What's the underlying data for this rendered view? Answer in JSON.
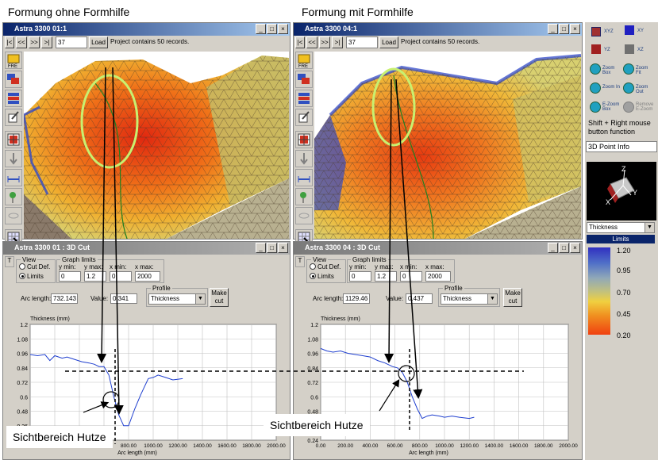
{
  "captions": {
    "left": "Formung ohne Formhilfe",
    "right": "Formung mit Formhilfe"
  },
  "window_buttons": [
    "_",
    "□",
    "×"
  ],
  "left_3d": {
    "title": "Astra 3300 01:1",
    "nav": [
      "|<",
      "<<",
      ">>",
      ">|"
    ],
    "record": "37",
    "load": "Load",
    "status": "Project contains 50 records."
  },
  "right_3d": {
    "title": "Astra 3300 04:1",
    "nav": [
      "|<",
      "<<",
      ">>",
      ">|"
    ],
    "record": "37",
    "load": "Load",
    "status": "Project contains 50 records."
  },
  "left_cut": {
    "title": "Astra 3300 01 : 3D Cut",
    "view_label": "View",
    "radio_cut_def": "Cut Def.",
    "radio_limits": "Limits",
    "graph_limits_label": "Graph limits",
    "ymin_label": "y min:",
    "ymax_label": "y max:",
    "xmin_label": "x min:",
    "xmax_label": "x max:",
    "ymin": "0",
    "ymax": "1.2",
    "xmin": "0",
    "xmax": "2000",
    "profile_label": "Profile",
    "profile_value": "Thickness",
    "make_cut": "Make cut",
    "arc_label": "Arc length:",
    "arc_value": "732.143",
    "value_label": "Value:",
    "value_value": "0.341"
  },
  "right_cut": {
    "title": "Astra 3300 04 : 3D Cut",
    "view_label": "View",
    "radio_cut_def": "Cut Def.",
    "radio_limits": "Limits",
    "graph_limits_label": "Graph limits",
    "ymin_label": "y min:",
    "ymax_label": "y max:",
    "xmin_label": "x min:",
    "xmax_label": "x max:",
    "ymin": "0",
    "ymax": "1.2",
    "xmin": "0",
    "xmax": "2000",
    "profile_label": "Profile",
    "profile_value": "Thickness",
    "make_cut": "Make cut",
    "arc_label": "Arc length:",
    "arc_value": "1129.46",
    "value_label": "Value:",
    "value_value": "0.437"
  },
  "right_panel": {
    "view_buttons": [
      "XYZ",
      "XY",
      "YZ",
      "XZ"
    ],
    "zoom_buttons": [
      "Zoom Box",
      "Zoom Fit",
      "Zoom In",
      "Zoom Out",
      "E-Zoom Box",
      "Remove E-Zoom"
    ],
    "shift_text": "Shift + Right mouse button function",
    "point_info": "3D Point Info",
    "axis_labels": [
      "Z",
      "X",
      "Y"
    ],
    "profile_select": "Thickness",
    "limits_label": "Limits",
    "scale_labels": [
      "1.20",
      "0.95",
      "0.70",
      "0.45",
      "0.20"
    ]
  },
  "chart_common": {
    "ylabel": "Thickness (mm)",
    "xlabel": "Arc length (mm)",
    "yticks": [
      "1.2",
      "1.08",
      "0.96",
      "0.84",
      "0.72",
      "0.6",
      "0.48",
      "0.36",
      "0.24"
    ],
    "xticks": [
      "0.00",
      "200.00",
      "400.00",
      "600.00",
      "800.00",
      "1000.00",
      "1200.00",
      "1400.00",
      "1600.00",
      "1800.00",
      "2000.00"
    ]
  },
  "chart_data": [
    {
      "type": "line",
      "xlabel": "Arc length (mm)",
      "ylabel": "Thickness (mm)",
      "xlim": [
        0,
        2000
      ],
      "ylim": [
        0.24,
        1.2
      ],
      "series": [
        {
          "x": [
            0,
            60,
            120,
            160,
            200,
            260,
            300,
            360,
            420,
            480,
            520,
            560,
            600,
            640,
            680,
            720,
            760,
            800,
            850,
            900,
            960,
            1000,
            1040,
            1100,
            1160,
            1240
          ],
          "y": [
            0.95,
            0.94,
            0.95,
            0.9,
            0.94,
            0.92,
            0.93,
            0.91,
            0.89,
            0.88,
            0.87,
            0.85,
            0.85,
            0.78,
            0.6,
            0.45,
            0.36,
            0.36,
            0.5,
            0.62,
            0.75,
            0.76,
            0.78,
            0.76,
            0.74,
            0.75
          ],
          "color": "#1f3fcf"
        }
      ]
    },
    {
      "type": "line",
      "xlabel": "Arc length (mm)",
      "ylabel": "Thickness (mm)",
      "xlim": [
        0,
        2000
      ],
      "ylim": [
        0.24,
        1.2
      ],
      "series": [
        {
          "x": [
            0,
            50,
            100,
            160,
            220,
            280,
            340,
            400,
            460,
            520,
            580,
            620,
            660,
            700,
            740,
            780,
            820,
            860,
            900,
            960,
            1000,
            1060,
            1120,
            1200,
            1240
          ],
          "y": [
            1.0,
            0.98,
            0.97,
            0.98,
            0.96,
            0.95,
            0.94,
            0.93,
            0.9,
            0.88,
            0.85,
            0.84,
            0.8,
            0.72,
            0.6,
            0.5,
            0.42,
            0.44,
            0.45,
            0.44,
            0.43,
            0.44,
            0.43,
            0.42,
            0.43
          ],
          "color": "#1f3fcf"
        }
      ]
    }
  ],
  "callouts": {
    "left": "Sichtbereich Hutze",
    "right": "Sichtbereich Hutze"
  },
  "colors": {
    "mesh_red": "#e02810",
    "mesh_orange": "#f08018",
    "mesh_yellow": "#e8d860",
    "mesh_blue": "#3048c8",
    "ellipse": "#c8f070"
  }
}
